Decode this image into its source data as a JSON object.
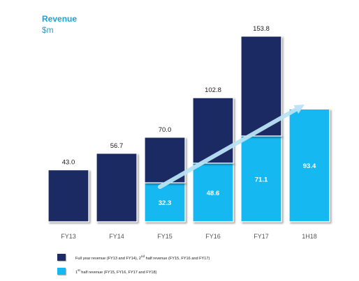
{
  "title": "Revenue",
  "subtitle": "$m",
  "colors": {
    "dark": "#1d2c63",
    "light": "#17b8f2",
    "title": "#12a5e0",
    "arrow": "#b9e3f5"
  },
  "legend": [
    {
      "html": "Full year revenue (FY13 and FY14), 2<sup>nd</sup> half revenue (FY15, FY16 and FY17)",
      "color_key": "dark"
    },
    {
      "html": "1<sup>st</sup> half revenue (FY15, FY16, FY17 and FY18)",
      "color_key": "light"
    }
  ],
  "chart_data": {
    "type": "bar",
    "stacked": true,
    "title": "Revenue",
    "ylabel": "$m",
    "categories": [
      "FY13",
      "FY14",
      "FY15",
      "FY16",
      "FY17",
      "1H18"
    ],
    "series": [
      {
        "name": "1st half revenue (FY15, FY16, FY17 and FY18)",
        "color_key": "light",
        "values": [
          0,
          0,
          32.3,
          48.6,
          71.1,
          93.4
        ]
      },
      {
        "name": "Full year revenue (FY13 and FY14), 2nd half revenue (FY15, FY16 and FY17)",
        "color_key": "dark",
        "values": [
          43.0,
          56.7,
          37.7,
          54.2,
          82.7,
          0
        ]
      }
    ],
    "totals": [
      "43.0",
      "56.7",
      "70.0",
      "102.8",
      "153.8",
      null
    ],
    "inner_labels": [
      null,
      null,
      "32.3",
      "48.6",
      "71.1",
      "93.4"
    ],
    "ylim": [
      0,
      160
    ],
    "grid": false,
    "legend_position": "bottom",
    "annotation": "trend arrow rising from FY15 to 1H18"
  }
}
